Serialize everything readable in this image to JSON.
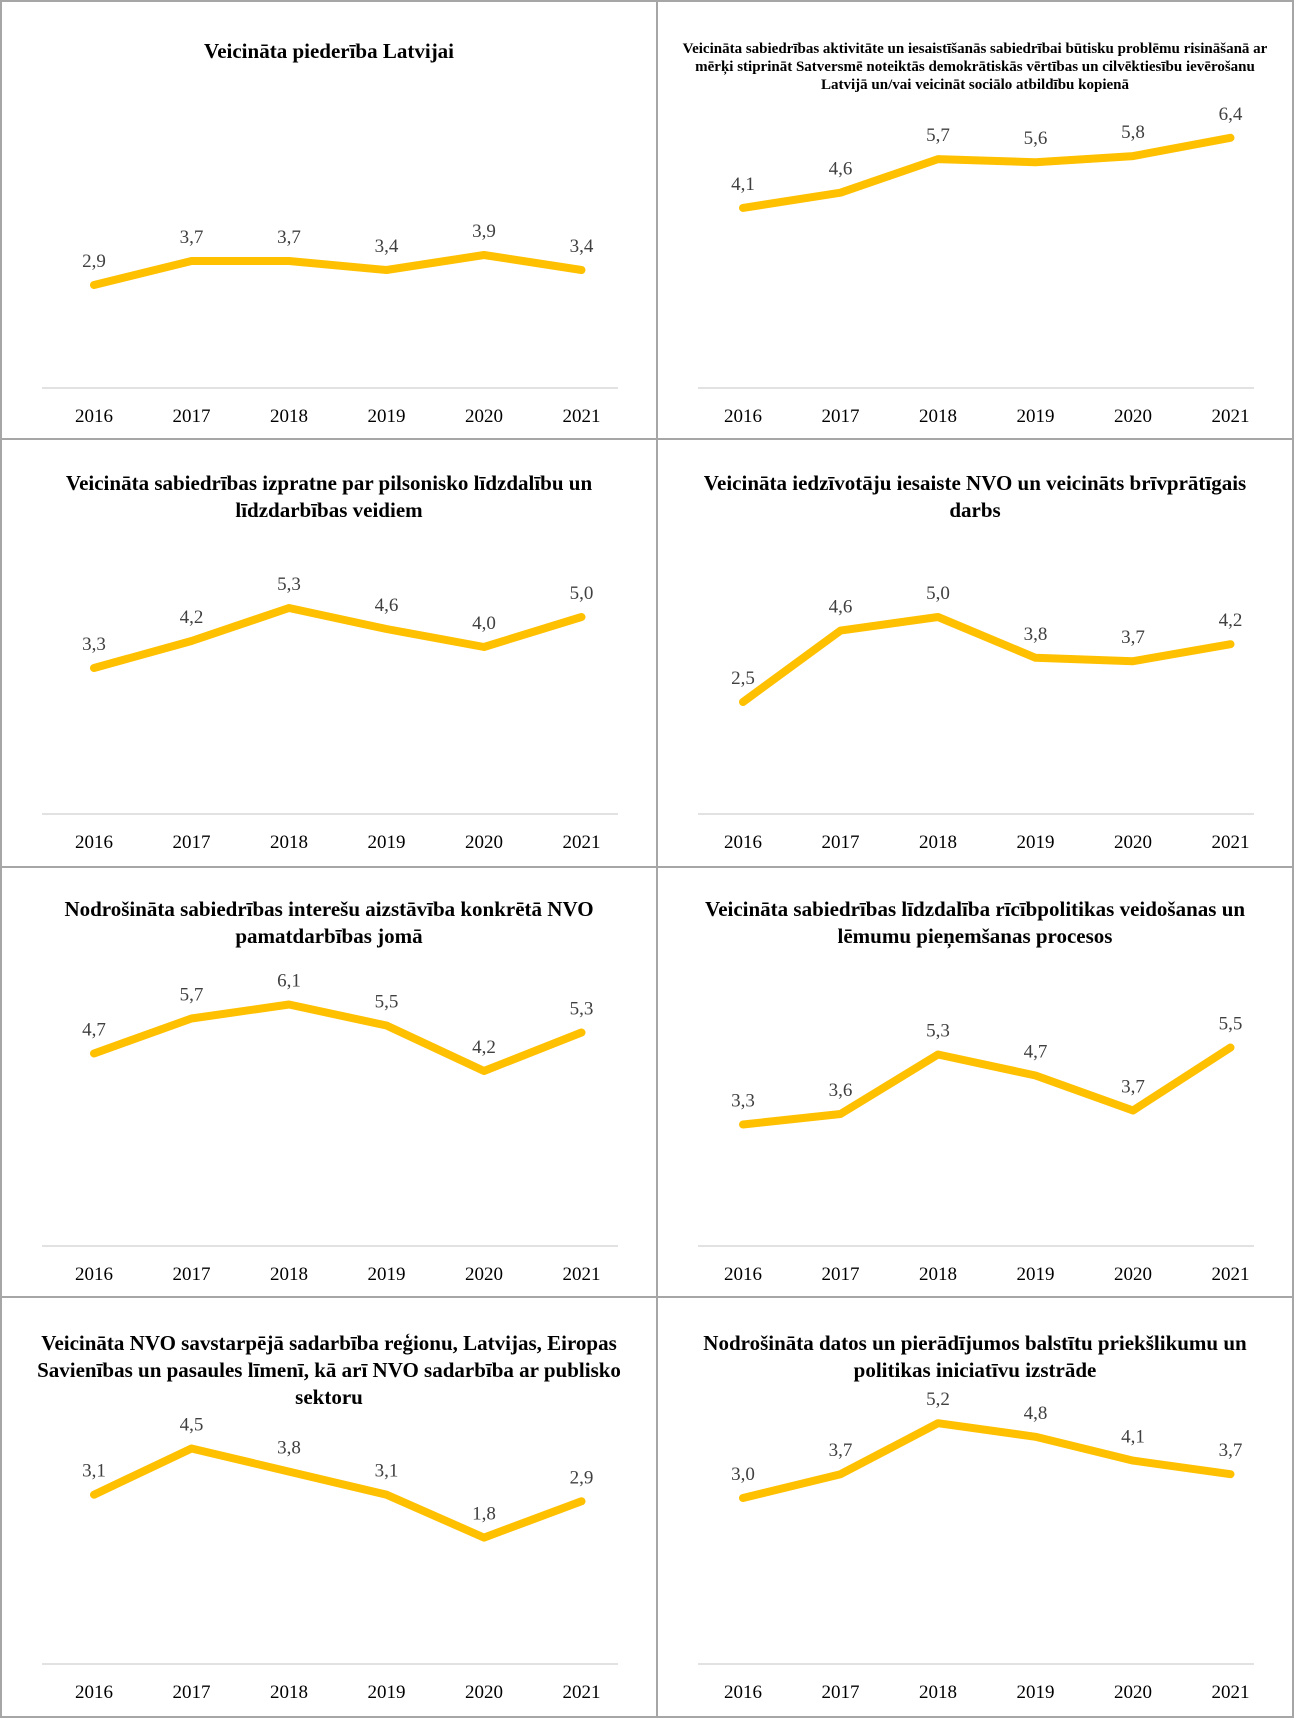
{
  "years": [
    "2016",
    "2017",
    "2018",
    "2019",
    "2020",
    "2021"
  ],
  "line_color": "#ffc000",
  "chart_data": [
    {
      "type": "line",
      "title": "Veicināta piederība Latvijai",
      "categories": [
        "2016",
        "2017",
        "2018",
        "2019",
        "2020",
        "2021"
      ],
      "values": [
        2.9,
        3.7,
        3.7,
        3.4,
        3.9,
        3.4
      ],
      "labels": [
        "2,9",
        "3,7",
        "3,7",
        "3,4",
        "3,9",
        "3,4"
      ]
    },
    {
      "type": "line",
      "title": "Veicināta sabiedrības aktivitāte un iesaistīšanās sabiedrībai būtisku problēmu risināšanā ar mērķi stiprināt Satversmē noteiktās demokrātiskās vērtības un cilvēktiesību ievērošanu Latvijā un/vai veicināt sociālo atbildību kopienā",
      "categories": [
        "2016",
        "2017",
        "2018",
        "2019",
        "2020",
        "2021"
      ],
      "values": [
        4.1,
        4.6,
        5.7,
        5.6,
        5.8,
        6.4
      ],
      "labels": [
        "4,1",
        "4,6",
        "5,7",
        "5,6",
        "5,8",
        "6,4"
      ]
    },
    {
      "type": "line",
      "title": "Veicināta sabiedrības izpratne par pilsonisko līdzdalību un līdzdarbības veidiem",
      "categories": [
        "2016",
        "2017",
        "2018",
        "2019",
        "2020",
        "2021"
      ],
      "values": [
        3.3,
        4.2,
        5.3,
        4.6,
        4.0,
        5.0
      ],
      "labels": [
        "3,3",
        "4,2",
        "5,3",
        "4,6",
        "4,0",
        "5,0"
      ]
    },
    {
      "type": "line",
      "title": "Veicināta iedzīvotāju iesaiste NVO un veicināts brīvprātīgais darbs",
      "categories": [
        "2016",
        "2017",
        "2018",
        "2019",
        "2020",
        "2021"
      ],
      "values": [
        2.5,
        4.6,
        5.0,
        3.8,
        3.7,
        4.2
      ],
      "labels": [
        "2,5",
        "4,6",
        "5,0",
        "3,8",
        "3,7",
        "4,2"
      ]
    },
    {
      "type": "line",
      "title": "Nodrošināta sabiedrības interešu aizstāvība konkrētā NVO pamatdarbības jomā",
      "categories": [
        "2016",
        "2017",
        "2018",
        "2019",
        "2020",
        "2021"
      ],
      "values": [
        4.7,
        5.7,
        6.1,
        5.5,
        4.2,
        5.3
      ],
      "labels": [
        "4,7",
        "5,7",
        "6,1",
        "5,5",
        "4,2",
        "5,3"
      ]
    },
    {
      "type": "line",
      "title": "Veicināta sabiedrības līdzdalība rīcībpolitikas veidošanas un lēmumu pieņemšanas procesos",
      "categories": [
        "2016",
        "2017",
        "2018",
        "2019",
        "2020",
        "2021"
      ],
      "values": [
        3.3,
        3.6,
        5.3,
        4.7,
        3.7,
        5.5
      ],
      "labels": [
        "3,3",
        "3,6",
        "5,3",
        "4,7",
        "3,7",
        "5,5"
      ]
    },
    {
      "type": "line",
      "title": "Veicināta NVO savstarpējā sadarbība reģionu, Latvijas, Eiropas Savienības un pasaules līmenī, kā arī NVO sadarbība ar publisko sektoru",
      "categories": [
        "2016",
        "2017",
        "2018",
        "2019",
        "2020",
        "2021"
      ],
      "values": [
        3.1,
        4.5,
        3.8,
        3.1,
        1.8,
        2.9
      ],
      "labels": [
        "3,1",
        "4,5",
        "3,8",
        "3,1",
        "1,8",
        "2,9"
      ]
    },
    {
      "type": "line",
      "title": "Nodrošināta datos un pierādījumos balstītu priekšlikumu un politikas iniciatīvu izstrāde",
      "categories": [
        "2016",
        "2017",
        "2018",
        "2019",
        "2020",
        "2021"
      ],
      "values": [
        3.0,
        3.7,
        5.2,
        4.8,
        4.1,
        3.7
      ],
      "labels": [
        "3,0",
        "3,7",
        "5,2",
        "4,8",
        "4,1",
        "3,7"
      ]
    }
  ]
}
